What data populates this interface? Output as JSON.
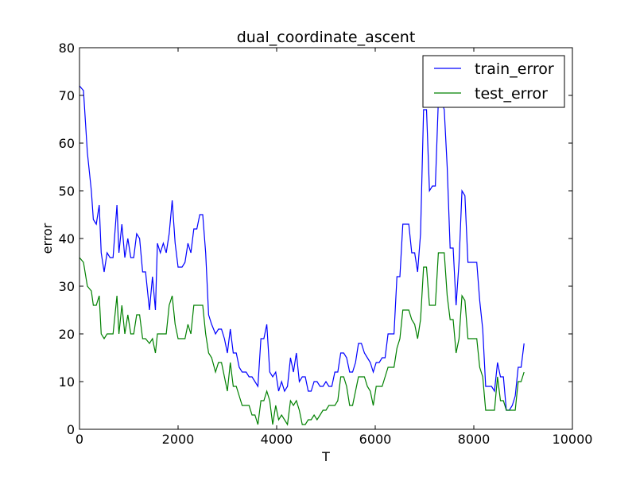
{
  "chart_data": {
    "type": "line",
    "title": "dual_coordinate_ascent",
    "xlabel": "T",
    "ylabel": "error",
    "xlim": [
      0,
      10000
    ],
    "ylim": [
      0,
      80
    ],
    "xticks": [
      0,
      2000,
      4000,
      6000,
      8000,
      10000
    ],
    "yticks": [
      0,
      10,
      20,
      30,
      40,
      50,
      60,
      70,
      80
    ],
    "xtick_labels": [
      "0",
      "2000",
      "4000",
      "6000",
      "8000",
      "10000"
    ],
    "ytick_labels": [
      "0",
      "10",
      "20",
      "30",
      "40",
      "50",
      "60",
      "70",
      "80"
    ],
    "grid": false,
    "legend_position": "top-right",
    "series": [
      {
        "name": "train_error",
        "color": "#0000ff",
        "points": [
          [
            0,
            72
          ],
          [
            80,
            71
          ],
          [
            160,
            58
          ],
          [
            240,
            50
          ],
          [
            280,
            44
          ],
          [
            340,
            43
          ],
          [
            400,
            47
          ],
          [
            440,
            37
          ],
          [
            500,
            33
          ],
          [
            560,
            37
          ],
          [
            620,
            36
          ],
          [
            680,
            36
          ],
          [
            760,
            47
          ],
          [
            800,
            37
          ],
          [
            860,
            43
          ],
          [
            920,
            36
          ],
          [
            980,
            40
          ],
          [
            1040,
            36
          ],
          [
            1100,
            36
          ],
          [
            1160,
            41
          ],
          [
            1220,
            40
          ],
          [
            1280,
            33
          ],
          [
            1340,
            33
          ],
          [
            1420,
            25
          ],
          [
            1480,
            32
          ],
          [
            1540,
            25
          ],
          [
            1580,
            39
          ],
          [
            1640,
            37
          ],
          [
            1700,
            39
          ],
          [
            1760,
            37
          ],
          [
            1820,
            41
          ],
          [
            1880,
            48
          ],
          [
            1940,
            39
          ],
          [
            2000,
            34
          ],
          [
            2080,
            34
          ],
          [
            2140,
            35
          ],
          [
            2200,
            39
          ],
          [
            2260,
            37
          ],
          [
            2320,
            42
          ],
          [
            2380,
            42
          ],
          [
            2440,
            45
          ],
          [
            2500,
            45
          ],
          [
            2560,
            37
          ],
          [
            2620,
            24
          ],
          [
            2680,
            22
          ],
          [
            2760,
            20
          ],
          [
            2820,
            21
          ],
          [
            2880,
            21
          ],
          [
            2940,
            19
          ],
          [
            3000,
            16
          ],
          [
            3060,
            21
          ],
          [
            3120,
            16
          ],
          [
            3180,
            16
          ],
          [
            3240,
            13
          ],
          [
            3300,
            12
          ],
          [
            3380,
            12
          ],
          [
            3440,
            11
          ],
          [
            3500,
            11
          ],
          [
            3560,
            10
          ],
          [
            3620,
            9
          ],
          [
            3680,
            19
          ],
          [
            3740,
            19
          ],
          [
            3800,
            22
          ],
          [
            3860,
            12
          ],
          [
            3920,
            11
          ],
          [
            3980,
            12
          ],
          [
            4040,
            8
          ],
          [
            4100,
            10
          ],
          [
            4160,
            8
          ],
          [
            4220,
            9
          ],
          [
            4280,
            15
          ],
          [
            4340,
            12
          ],
          [
            4400,
            16
          ],
          [
            4460,
            10
          ],
          [
            4520,
            11
          ],
          [
            4580,
            11
          ],
          [
            4640,
            8
          ],
          [
            4700,
            8
          ],
          [
            4760,
            10
          ],
          [
            4820,
            10
          ],
          [
            4880,
            9
          ],
          [
            4940,
            9
          ],
          [
            5000,
            10
          ],
          [
            5060,
            9
          ],
          [
            5120,
            9
          ],
          [
            5180,
            12
          ],
          [
            5240,
            12
          ],
          [
            5300,
            16
          ],
          [
            5360,
            16
          ],
          [
            5420,
            15
          ],
          [
            5480,
            12
          ],
          [
            5540,
            12
          ],
          [
            5600,
            14
          ],
          [
            5660,
            18
          ],
          [
            5720,
            18
          ],
          [
            5780,
            16
          ],
          [
            5840,
            15
          ],
          [
            5900,
            14
          ],
          [
            5960,
            12
          ],
          [
            6020,
            14
          ],
          [
            6080,
            14
          ],
          [
            6140,
            15
          ],
          [
            6200,
            15
          ],
          [
            6260,
            20
          ],
          [
            6320,
            20
          ],
          [
            6380,
            20
          ],
          [
            6440,
            32
          ],
          [
            6500,
            32
          ],
          [
            6560,
            43
          ],
          [
            6620,
            43
          ],
          [
            6680,
            43
          ],
          [
            6740,
            37
          ],
          [
            6800,
            37
          ],
          [
            6860,
            33
          ],
          [
            6920,
            41
          ],
          [
            6980,
            67
          ],
          [
            7040,
            67
          ],
          [
            7100,
            50
          ],
          [
            7160,
            51
          ],
          [
            7220,
            51
          ],
          [
            7280,
            69
          ],
          [
            7340,
            69
          ],
          [
            7400,
            67
          ],
          [
            7460,
            55
          ],
          [
            7520,
            38
          ],
          [
            7580,
            38
          ],
          [
            7640,
            26
          ],
          [
            7700,
            35
          ],
          [
            7760,
            50
          ],
          [
            7820,
            49
          ],
          [
            7880,
            35
          ],
          [
            7940,
            35
          ],
          [
            8000,
            35
          ],
          [
            8060,
            35
          ],
          [
            8120,
            27
          ],
          [
            8180,
            21
          ],
          [
            8240,
            9
          ],
          [
            8300,
            9
          ],
          [
            8360,
            9
          ],
          [
            8420,
            8
          ],
          [
            8480,
            14
          ],
          [
            8540,
            11
          ],
          [
            8600,
            11
          ],
          [
            8660,
            4
          ],
          [
            8720,
            4
          ],
          [
            8780,
            5
          ],
          [
            8840,
            7
          ],
          [
            8900,
            13
          ],
          [
            8960,
            13
          ],
          [
            9020,
            18
          ]
        ]
      },
      {
        "name": "test_error",
        "color": "#008000",
        "points": [
          [
            0,
            36
          ],
          [
            80,
            35
          ],
          [
            160,
            30
          ],
          [
            240,
            29
          ],
          [
            280,
            26
          ],
          [
            340,
            26
          ],
          [
            400,
            28
          ],
          [
            440,
            20
          ],
          [
            500,
            19
          ],
          [
            560,
            20
          ],
          [
            620,
            20
          ],
          [
            680,
            20
          ],
          [
            760,
            28
          ],
          [
            800,
            20
          ],
          [
            860,
            26
          ],
          [
            920,
            20
          ],
          [
            980,
            24
          ],
          [
            1040,
            20
          ],
          [
            1100,
            20
          ],
          [
            1160,
            24
          ],
          [
            1220,
            24
          ],
          [
            1280,
            19
          ],
          [
            1340,
            19
          ],
          [
            1420,
            18
          ],
          [
            1480,
            19
          ],
          [
            1540,
            16
          ],
          [
            1580,
            20
          ],
          [
            1640,
            20
          ],
          [
            1700,
            20
          ],
          [
            1760,
            20
          ],
          [
            1820,
            26
          ],
          [
            1880,
            28
          ],
          [
            1940,
            22
          ],
          [
            2000,
            19
          ],
          [
            2080,
            19
          ],
          [
            2140,
            19
          ],
          [
            2200,
            22
          ],
          [
            2260,
            20
          ],
          [
            2320,
            26
          ],
          [
            2380,
            26
          ],
          [
            2440,
            26
          ],
          [
            2500,
            26
          ],
          [
            2560,
            20
          ],
          [
            2620,
            16
          ],
          [
            2680,
            15
          ],
          [
            2760,
            12
          ],
          [
            2820,
            14
          ],
          [
            2880,
            14
          ],
          [
            2940,
            11
          ],
          [
            3000,
            8
          ],
          [
            3060,
            14
          ],
          [
            3120,
            9
          ],
          [
            3180,
            9
          ],
          [
            3240,
            7
          ],
          [
            3300,
            5
          ],
          [
            3380,
            5
          ],
          [
            3440,
            5
          ],
          [
            3500,
            3
          ],
          [
            3560,
            3
          ],
          [
            3620,
            1
          ],
          [
            3680,
            6
          ],
          [
            3740,
            6
          ],
          [
            3800,
            8
          ],
          [
            3860,
            6
          ],
          [
            3920,
            1
          ],
          [
            3980,
            5
          ],
          [
            4040,
            2
          ],
          [
            4100,
            3
          ],
          [
            4160,
            2
          ],
          [
            4220,
            1
          ],
          [
            4280,
            6
          ],
          [
            4340,
            5
          ],
          [
            4400,
            6
          ],
          [
            4460,
            4
          ],
          [
            4520,
            1
          ],
          [
            4580,
            1
          ],
          [
            4640,
            2
          ],
          [
            4700,
            2
          ],
          [
            4760,
            3
          ],
          [
            4820,
            2
          ],
          [
            4880,
            3
          ],
          [
            4940,
            4
          ],
          [
            5000,
            4
          ],
          [
            5060,
            5
          ],
          [
            5120,
            5
          ],
          [
            5180,
            5
          ],
          [
            5240,
            6
          ],
          [
            5300,
            11
          ],
          [
            5360,
            11
          ],
          [
            5420,
            9
          ],
          [
            5480,
            5
          ],
          [
            5540,
            5
          ],
          [
            5600,
            8
          ],
          [
            5660,
            11
          ],
          [
            5720,
            11
          ],
          [
            5780,
            11
          ],
          [
            5840,
            9
          ],
          [
            5900,
            8
          ],
          [
            5960,
            5
          ],
          [
            6020,
            9
          ],
          [
            6080,
            9
          ],
          [
            6140,
            9
          ],
          [
            6200,
            11
          ],
          [
            6260,
            13
          ],
          [
            6320,
            13
          ],
          [
            6380,
            13
          ],
          [
            6440,
            17
          ],
          [
            6500,
            19
          ],
          [
            6560,
            25
          ],
          [
            6620,
            25
          ],
          [
            6680,
            25
          ],
          [
            6740,
            23
          ],
          [
            6800,
            22
          ],
          [
            6860,
            19
          ],
          [
            6920,
            23
          ],
          [
            6980,
            34
          ],
          [
            7040,
            34
          ],
          [
            7100,
            26
          ],
          [
            7160,
            26
          ],
          [
            7220,
            26
          ],
          [
            7280,
            37
          ],
          [
            7340,
            37
          ],
          [
            7400,
            37
          ],
          [
            7460,
            28
          ],
          [
            7520,
            23
          ],
          [
            7580,
            23
          ],
          [
            7640,
            16
          ],
          [
            7700,
            19
          ],
          [
            7760,
            28
          ],
          [
            7820,
            27
          ],
          [
            7880,
            19
          ],
          [
            7940,
            19
          ],
          [
            8000,
            19
          ],
          [
            8060,
            19
          ],
          [
            8120,
            13
          ],
          [
            8180,
            11
          ],
          [
            8240,
            4
          ],
          [
            8300,
            4
          ],
          [
            8360,
            4
          ],
          [
            8420,
            4
          ],
          [
            8480,
            11
          ],
          [
            8540,
            6
          ],
          [
            8600,
            6
          ],
          [
            8660,
            4
          ],
          [
            8720,
            4
          ],
          [
            8780,
            4
          ],
          [
            8840,
            4
          ],
          [
            8900,
            10
          ],
          [
            8960,
            10
          ],
          [
            9020,
            12
          ]
        ]
      }
    ]
  }
}
